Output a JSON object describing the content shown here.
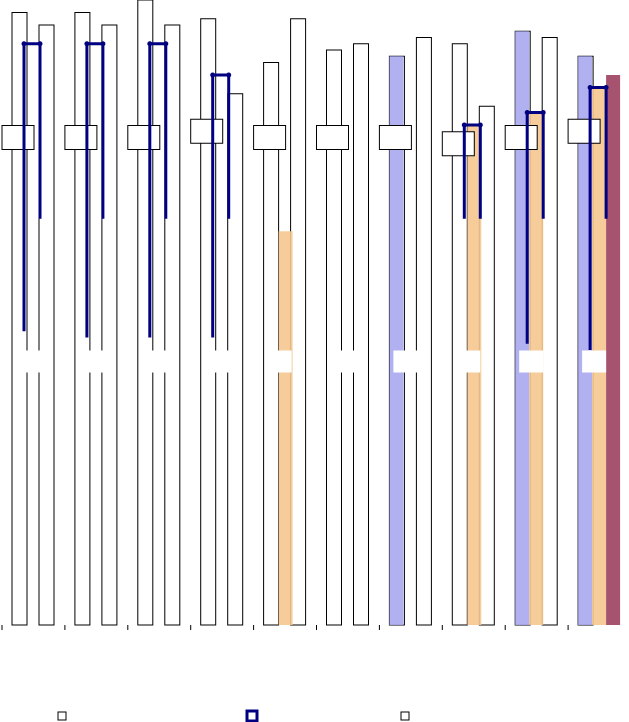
{
  "chart_data": {
    "type": "bar",
    "title": "",
    "xlabel": "",
    "ylabel": "",
    "ylim": [
      0,
      100
    ],
    "grid": false,
    "legend": {
      "placement": "bottom",
      "entries": [
        {
          "symbol": "square-outline"
        },
        {
          "symbol": "square-errorbar"
        },
        {
          "symbol": "square-outline"
        }
      ]
    },
    "groups": [
      {
        "outline_a": 98,
        "outline_b": 96,
        "label_box": 78,
        "err_high": 93,
        "err_low": 47,
        "err_mid": 65,
        "fill": []
      },
      {
        "outline_a": 98,
        "outline_b": 96,
        "label_box": 78,
        "err_high": 93,
        "err_low": 46,
        "err_mid": 65,
        "fill": []
      },
      {
        "outline_a": 100,
        "outline_b": 96,
        "label_box": 78,
        "err_high": 93,
        "err_low": 46,
        "err_mid": 65,
        "fill": []
      },
      {
        "outline_a": 97,
        "outline_b": 85,
        "label_box": 79,
        "err_high": 88,
        "err_low": 46,
        "err_mid": 65,
        "fill": []
      },
      {
        "outline_a": 90,
        "outline_b": 97,
        "label_box": 78,
        "err_high": 0,
        "err_low": 0,
        "err_mid": 0,
        "fill": [
          {
            "color": "#f5c88f",
            "value": 63
          }
        ]
      },
      {
        "outline_a": 92,
        "outline_b": 93,
        "label_box": 78,
        "err_high": 0,
        "err_low": 0,
        "err_mid": 0,
        "fill": []
      },
      {
        "outline_a": 91,
        "outline_b": 94,
        "label_box": 78,
        "err_high": 0,
        "err_low": 0,
        "err_mid": 0,
        "fill": [
          {
            "color": "#a8a8f0",
            "value": 91
          }
        ]
      },
      {
        "outline_a": 93,
        "outline_b": 83,
        "label_box": 77,
        "err_high": 80,
        "err_low": 65,
        "err_mid": 65,
        "fill": [
          {
            "color": "#f5c88f",
            "value": 80
          }
        ]
      },
      {
        "outline_a": 95,
        "outline_b": 94,
        "label_box": 78,
        "err_high": 82,
        "err_low": 45,
        "err_mid": 65,
        "fill": [
          {
            "color": "#a8a8f0",
            "value": 95
          },
          {
            "color": "#f5c88f",
            "value": 82
          }
        ]
      },
      {
        "outline_a": 91,
        "outline_b": 0,
        "label_box": 79,
        "err_high": 86,
        "err_low": 44,
        "err_mid": 65,
        "fill": [
          {
            "color": "#a8a8f0",
            "value": 91
          },
          {
            "color": "#f5c88f",
            "value": 86
          },
          {
            "color": "#9c4060",
            "value": 88
          }
        ]
      }
    ]
  }
}
